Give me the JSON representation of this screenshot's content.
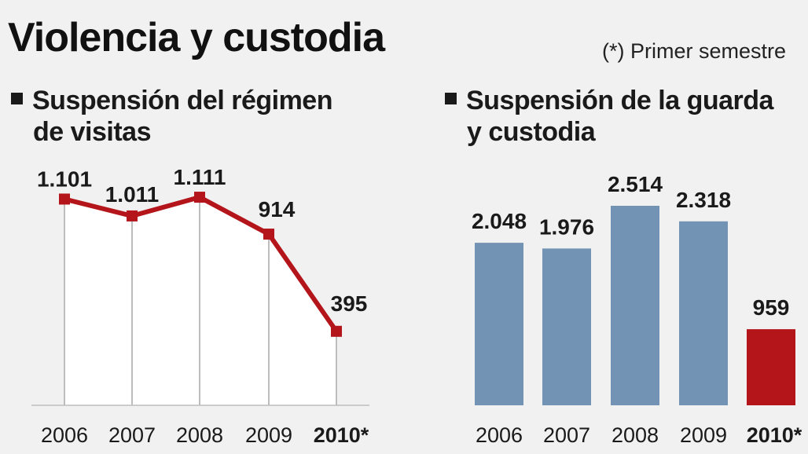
{
  "title": "Violencia y custodia",
  "note": "(*) Primer semestre",
  "colors": {
    "background": "#f1f1f1",
    "line": "#b3151b",
    "marker": "#b3151b",
    "bar": "#7393b4",
    "bar_highlight": "#b3151b",
    "area_fill": "#ffffff",
    "grid": "#bdbdbd"
  },
  "chart_data": [
    {
      "type": "line",
      "title": "Suspensión del régimen de visitas",
      "title_lines": [
        "Suspensión del régimen",
        "de visitas"
      ],
      "categories": [
        "2006",
        "2007",
        "2008",
        "2009",
        "2010*"
      ],
      "values": [
        1101,
        1011,
        1111,
        914,
        395
      ],
      "value_labels": [
        "1.101",
        "1.011",
        "1.111",
        "914",
        "395"
      ],
      "highlight_index": 4,
      "ylim": [
        0,
        1300
      ],
      "xlabel": "",
      "ylabel": ""
    },
    {
      "type": "bar",
      "title": "Suspensión de la guarda y custodia",
      "title_lines": [
        "Suspensión de la guarda",
        "y custodia"
      ],
      "categories": [
        "2006",
        "2007",
        "2008",
        "2009",
        "2010*"
      ],
      "values": [
        2048,
        1976,
        2514,
        2318,
        959
      ],
      "value_labels": [
        "2.048",
        "1.976",
        "2.514",
        "2.318",
        "959"
      ],
      "highlight_index": 4,
      "ylim": [
        0,
        2640
      ],
      "xlabel": "",
      "ylabel": ""
    }
  ]
}
